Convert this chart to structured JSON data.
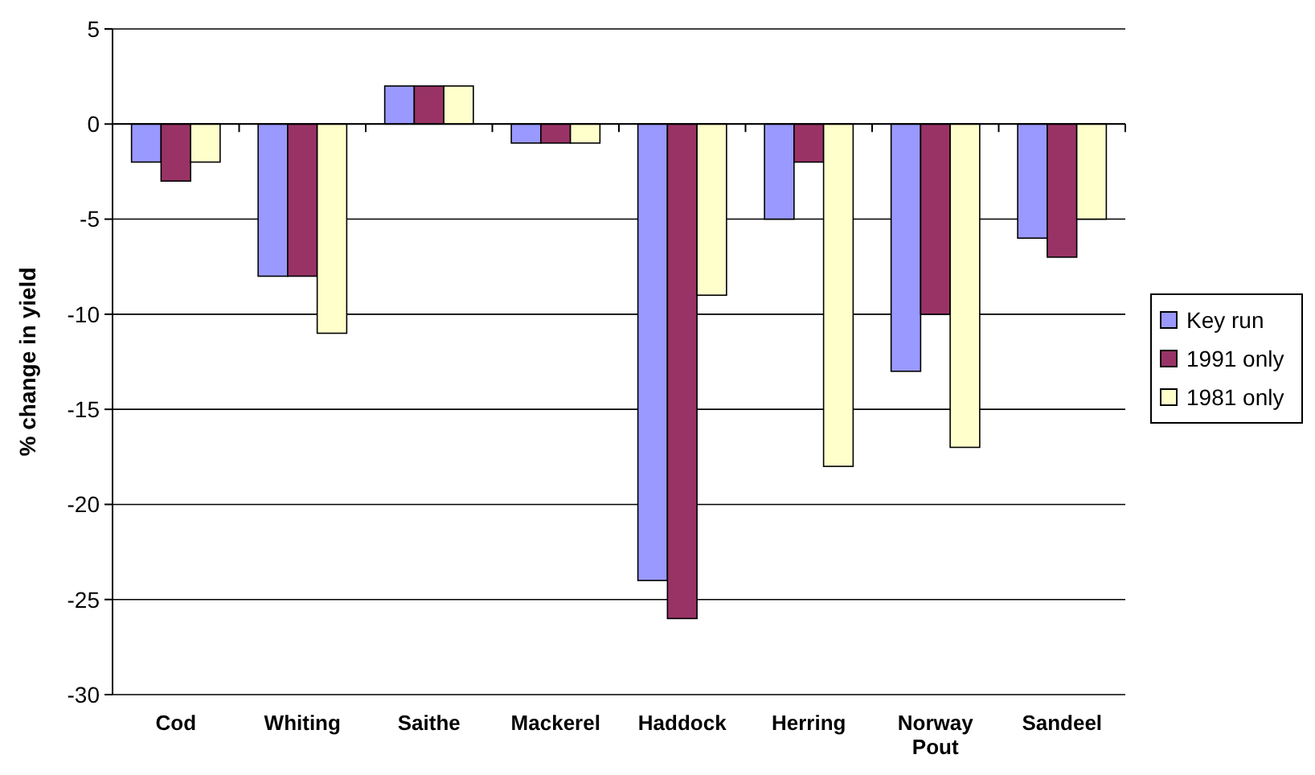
{
  "chart_data": {
    "type": "bar",
    "ylabel": "% change in yield",
    "categories": [
      "Cod",
      "Whiting",
      "Saithe",
      "Mackerel",
      "Haddock",
      "Herring",
      "Norway Pout",
      "Sandeel"
    ],
    "series": [
      {
        "name": "Key run",
        "color": "#9999ff",
        "values": [
          -2,
          -8,
          2,
          -1,
          -24,
          -5,
          -13,
          -6
        ]
      },
      {
        "name": "1991 only",
        "color": "#993366",
        "values": [
          -3,
          -8,
          2,
          -1,
          -26,
          -2,
          -10,
          -7
        ]
      },
      {
        "name": "1981 only",
        "color": "#ffffcc",
        "values": [
          -2,
          -11,
          2,
          -1,
          -9,
          -18,
          -17,
          -5
        ]
      }
    ],
    "ylim": [
      -30,
      5
    ],
    "yticks": [
      -30,
      -25,
      -20,
      -15,
      -10,
      -5,
      0,
      5
    ],
    "grid": "y",
    "legend": "right"
  }
}
